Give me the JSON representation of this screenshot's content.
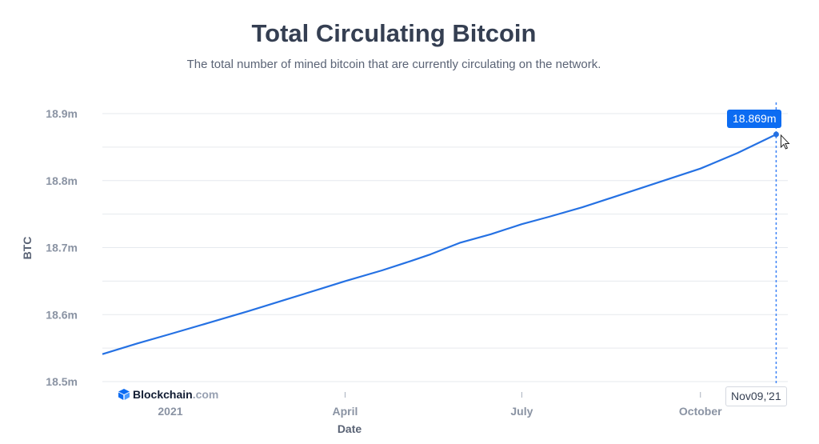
{
  "header": {
    "title": "Total Circulating Bitcoin",
    "subtitle": "The total number of mined bitcoin that are currently circulating on the network."
  },
  "brand": {
    "name": "Blockchain",
    "suffix": ".com",
    "icon": "blockchain-logo-icon"
  },
  "tooltip": {
    "value": "18.869m",
    "date": "Nov09,'21"
  },
  "colors": {
    "line": "#2571e3",
    "tooltip_bg": "#0c6cf2",
    "grid": "#e6e9ee",
    "crosshair": "#3b82f6"
  },
  "chart_data": {
    "type": "line",
    "title": "Total Circulating Bitcoin",
    "xlabel": "Date",
    "ylabel": "BTC",
    "yticks": [
      {
        "value": 18.5,
        "label": "18.5m"
      },
      {
        "value": 18.6,
        "label": "18.6m"
      },
      {
        "value": 18.7,
        "label": "18.7m"
      },
      {
        "value": 18.8,
        "label": "18.8m"
      },
      {
        "value": 18.9,
        "label": "18.9m"
      }
    ],
    "xticks": [
      {
        "date": "2021-01-01",
        "label": "2021"
      },
      {
        "date": "2021-04-01",
        "label": "April"
      },
      {
        "date": "2021-07-01",
        "label": "July"
      },
      {
        "date": "2021-10-01",
        "label": "October"
      }
    ],
    "xlim": [
      "2020-11-27",
      "2021-11-15"
    ],
    "ylim": [
      18.5,
      18.9
    ],
    "grid": true,
    "series": [
      {
        "unit": "million BTC",
        "x": [
          "2020-11-27",
          "2020-12-15",
          "2021-01-01",
          "2021-01-20",
          "2021-02-10",
          "2021-03-01",
          "2021-03-20",
          "2021-04-01",
          "2021-04-20",
          "2021-05-05",
          "2021-05-15",
          "2021-05-30",
          "2021-06-15",
          "2021-07-01",
          "2021-07-15",
          "2021-08-01",
          "2021-08-20",
          "2021-09-10",
          "2021-10-01",
          "2021-10-20",
          "2021-11-09"
        ],
        "y": [
          18.541,
          18.557,
          18.571,
          18.587,
          18.605,
          18.622,
          18.639,
          18.65,
          18.666,
          18.68,
          18.69,
          18.707,
          18.72,
          18.735,
          18.746,
          18.76,
          18.778,
          18.798,
          18.818,
          18.841,
          18.869
        ]
      }
    ],
    "highlight": {
      "date": "2021-11-09",
      "value": 18.869,
      "label": "18.869m"
    }
  }
}
